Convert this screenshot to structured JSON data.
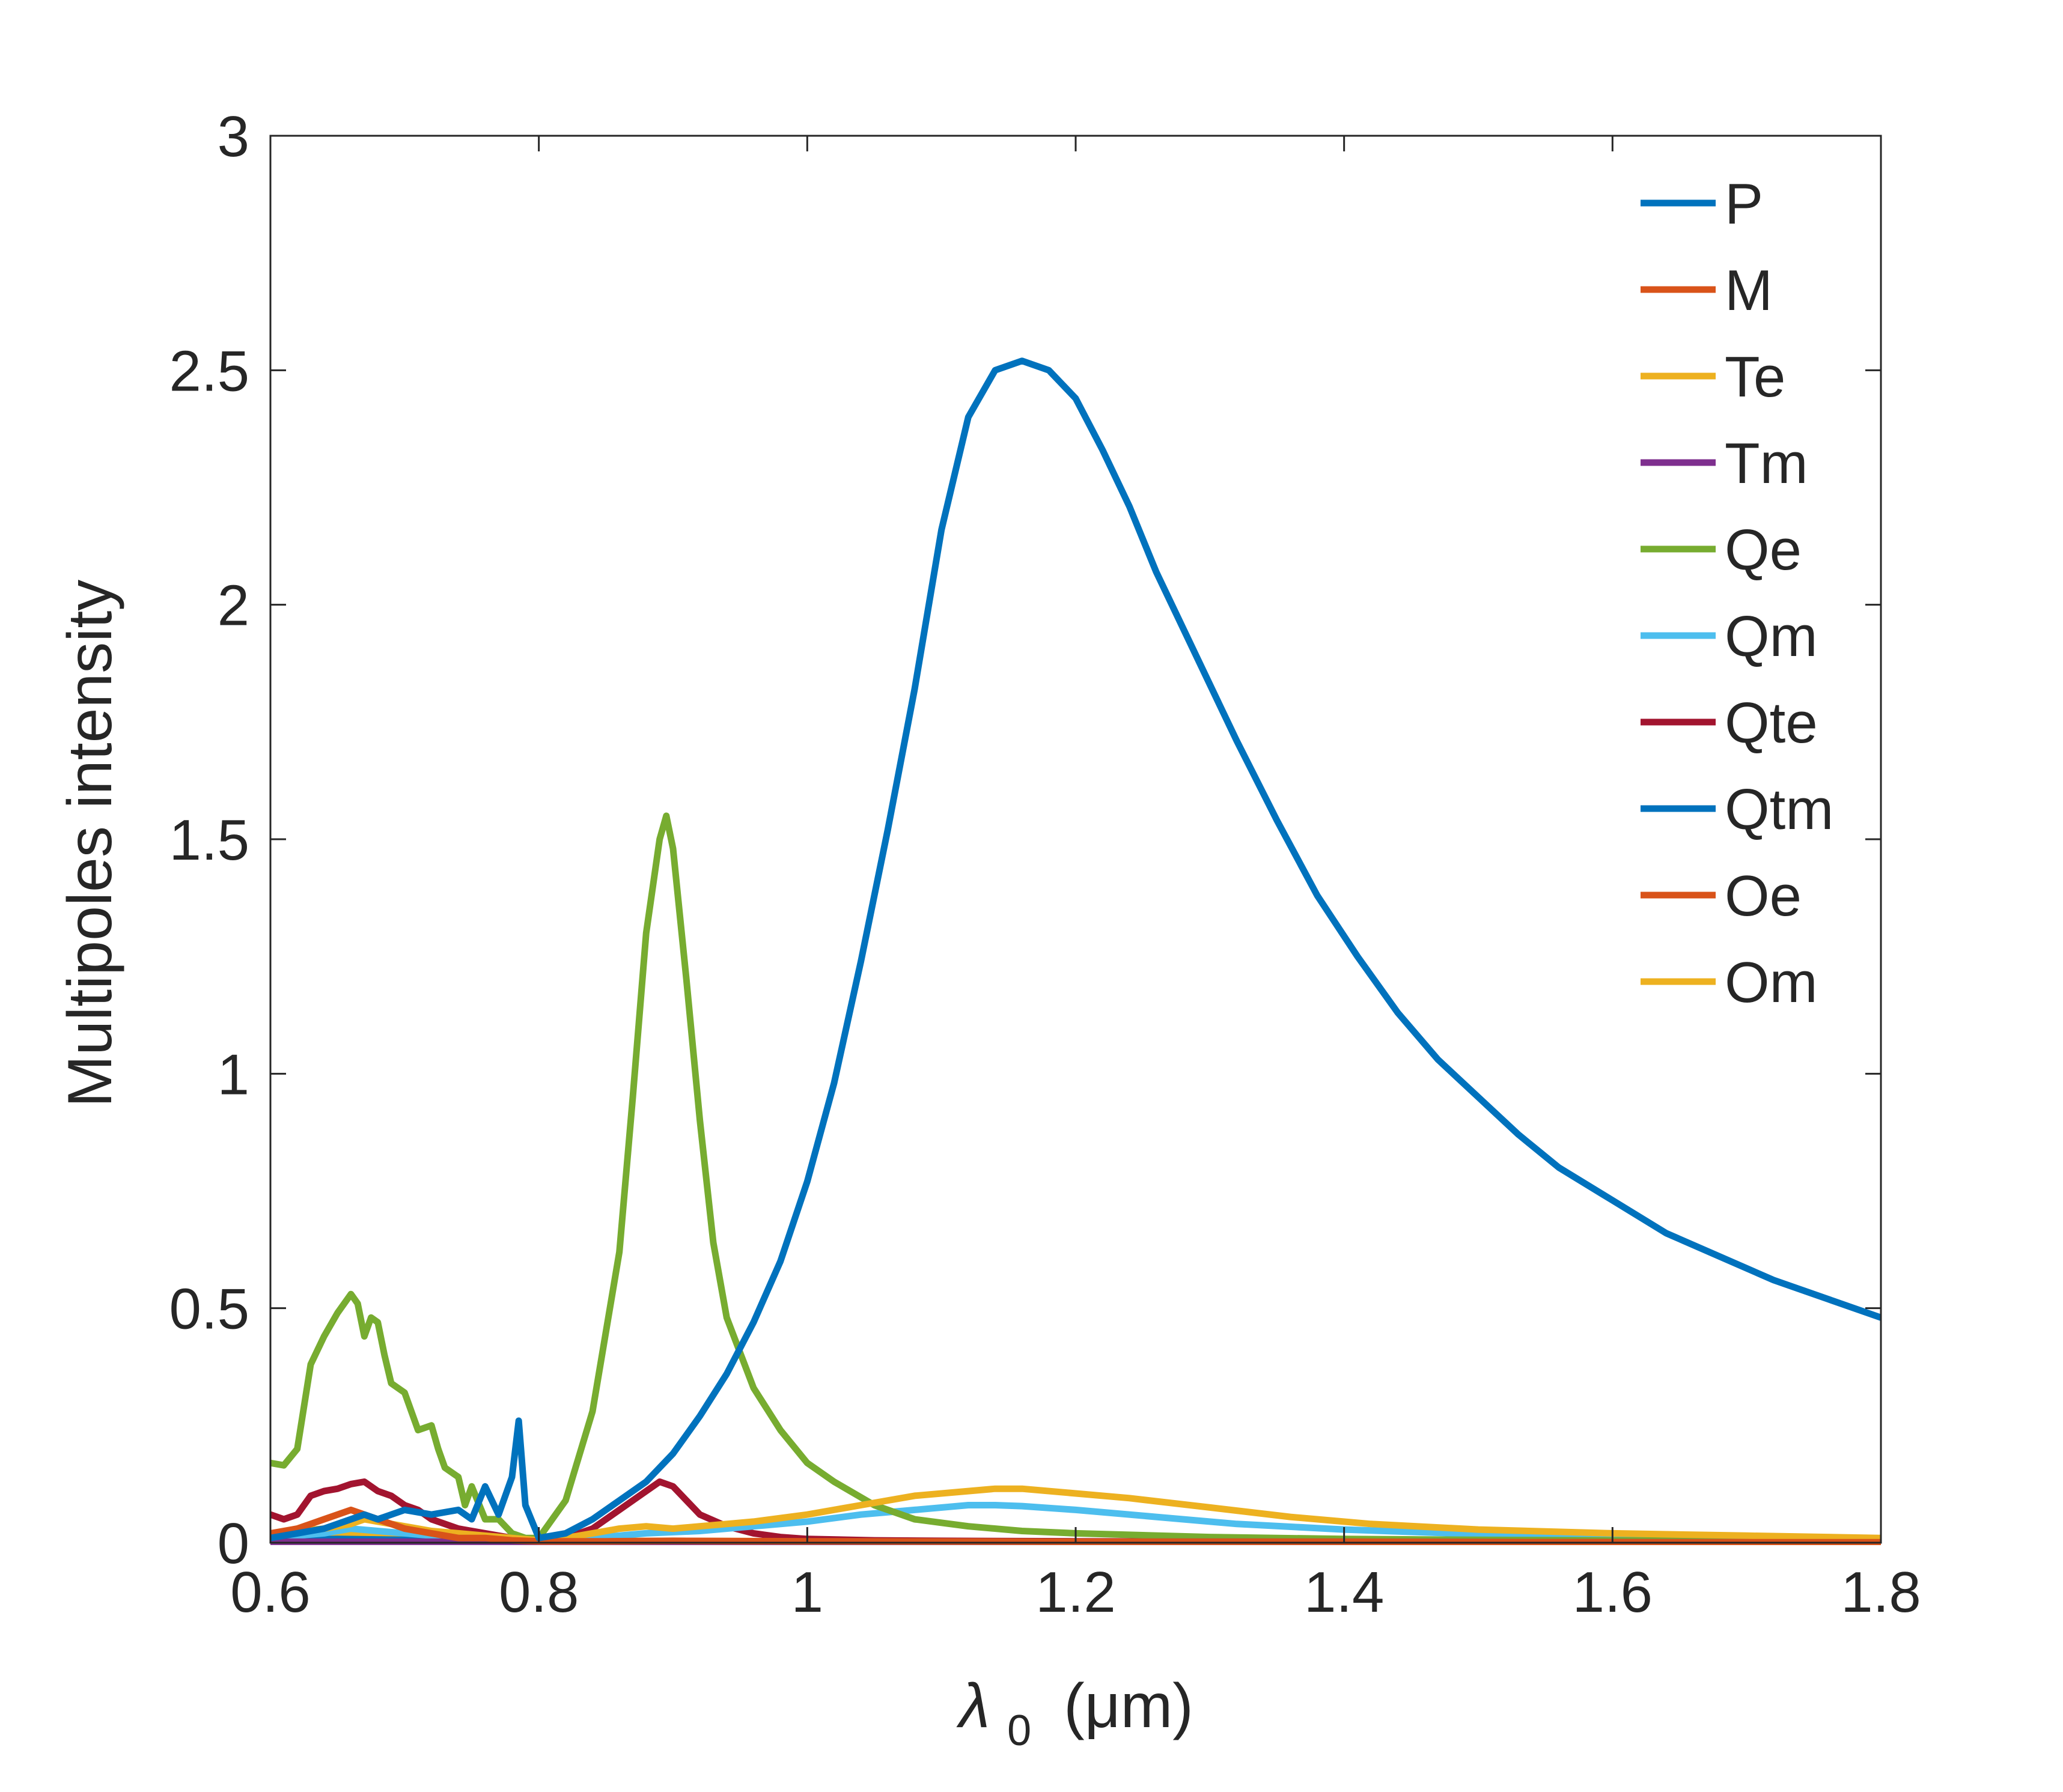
{
  "chart_data": {
    "type": "line",
    "title": "",
    "xlabel": "λ₀ (μm)",
    "xlabel_parts": {
      "symbol": "λ",
      "subscript": "0",
      "unit": "(μm)"
    },
    "ylabel": "Multipoles intensity",
    "xlim": [
      0.6,
      1.8
    ],
    "ylim": [
      0,
      3
    ],
    "xticks": [
      0.6,
      0.8,
      1.0,
      1.2,
      1.4,
      1.6,
      1.8
    ],
    "xtick_labels": [
      "0.6",
      "0.8",
      "1",
      "1.2",
      "1.4",
      "1.6",
      "1.8"
    ],
    "yticks": [
      0,
      0.5,
      1.0,
      1.5,
      2.0,
      2.5,
      3.0
    ],
    "ytick_labels": [
      "0",
      "0.5",
      "1",
      "1.5",
      "2",
      "2.5",
      "3"
    ],
    "grid": false,
    "legend_position": "top-right",
    "series": [
      {
        "name": "P",
        "color": "#0072BD",
        "x": [
          0.6,
          0.62,
          0.64,
          0.66,
          0.67,
          0.68,
          0.7,
          0.72,
          0.74,
          0.75,
          0.76,
          0.77,
          0.78,
          0.785,
          0.79,
          0.8,
          0.82,
          0.84,
          0.86,
          0.88,
          0.9,
          0.92,
          0.94,
          0.96,
          0.98,
          1.0,
          1.02,
          1.04,
          1.06,
          1.08,
          1.1,
          1.12,
          1.14,
          1.16,
          1.18,
          1.2,
          1.22,
          1.24,
          1.26,
          1.28,
          1.3,
          1.32,
          1.35,
          1.38,
          1.41,
          1.44,
          1.47,
          1.5,
          1.53,
          1.56,
          1.6,
          1.64,
          1.68,
          1.72,
          1.76,
          1.8
        ],
        "y": [
          0.01,
          0.02,
          0.03,
          0.05,
          0.06,
          0.05,
          0.07,
          0.06,
          0.07,
          0.05,
          0.12,
          0.06,
          0.14,
          0.26,
          0.08,
          0.01,
          0.02,
          0.05,
          0.09,
          0.13,
          0.19,
          0.27,
          0.36,
          0.47,
          0.6,
          0.77,
          0.98,
          1.24,
          1.52,
          1.82,
          2.16,
          2.4,
          2.5,
          2.52,
          2.5,
          2.44,
          2.33,
          2.21,
          2.07,
          1.95,
          1.83,
          1.71,
          1.54,
          1.38,
          1.25,
          1.13,
          1.03,
          0.95,
          0.87,
          0.8,
          0.73,
          0.66,
          0.61,
          0.56,
          0.52,
          0.48
        ]
      },
      {
        "name": "M",
        "color": "#D95319",
        "x": [
          0.6,
          0.62,
          0.64,
          0.66,
          0.68,
          0.7,
          0.72,
          0.74,
          0.76,
          0.78,
          0.8,
          0.85,
          0.9,
          1.0,
          1.2,
          1.4,
          1.6,
          1.8
        ],
        "y": [
          0.02,
          0.03,
          0.05,
          0.07,
          0.05,
          0.03,
          0.02,
          0.01,
          0.01,
          0.005,
          0.003,
          0.003,
          0.004,
          0.003,
          0.002,
          0.002,
          0.001,
          0.001
        ]
      },
      {
        "name": "Te",
        "color": "#EDB120",
        "x": [
          0.6,
          0.62,
          0.64,
          0.66,
          0.67,
          0.68,
          0.7,
          0.72,
          0.74,
          0.76,
          0.78,
          0.8,
          0.82,
          0.84,
          0.86,
          0.88,
          0.9,
          0.92,
          0.94,
          0.96,
          1.0,
          1.04,
          1.08,
          1.12,
          1.14,
          1.16,
          1.2,
          1.24,
          1.3,
          1.36,
          1.42,
          1.5,
          1.6,
          1.7,
          1.8
        ],
        "y": [
          0.02,
          0.025,
          0.03,
          0.04,
          0.05,
          0.045,
          0.035,
          0.025,
          0.02,
          0.015,
          0.01,
          0.005,
          0.01,
          0.02,
          0.03,
          0.035,
          0.03,
          0.035,
          0.04,
          0.045,
          0.06,
          0.08,
          0.1,
          0.11,
          0.115,
          0.115,
          0.105,
          0.095,
          0.075,
          0.055,
          0.04,
          0.028,
          0.02,
          0.015,
          0.01
        ]
      },
      {
        "name": "Tm",
        "color": "#7E2F8E",
        "x": [
          0.6,
          0.8,
          1.0,
          1.2,
          1.4,
          1.6,
          1.8
        ],
        "y": [
          0.002,
          0.002,
          0.002,
          0.002,
          0.002,
          0.001,
          0.001
        ]
      },
      {
        "name": "Qe",
        "color": "#77AC30",
        "x": [
          0.6,
          0.61,
          0.62,
          0.63,
          0.64,
          0.65,
          0.66,
          0.665,
          0.67,
          0.675,
          0.68,
          0.685,
          0.69,
          0.7,
          0.71,
          0.72,
          0.725,
          0.73,
          0.74,
          0.745,
          0.75,
          0.76,
          0.77,
          0.78,
          0.79,
          0.8,
          0.82,
          0.84,
          0.86,
          0.87,
          0.88,
          0.89,
          0.895,
          0.9,
          0.91,
          0.92,
          0.93,
          0.94,
          0.96,
          0.98,
          1.0,
          1.02,
          1.05,
          1.08,
          1.12,
          1.16,
          1.2,
          1.3,
          1.4,
          1.5,
          1.6,
          1.8
        ],
        "y": [
          0.17,
          0.165,
          0.2,
          0.38,
          0.44,
          0.49,
          0.53,
          0.51,
          0.44,
          0.48,
          0.47,
          0.4,
          0.34,
          0.32,
          0.24,
          0.25,
          0.2,
          0.16,
          0.14,
          0.08,
          0.12,
          0.05,
          0.05,
          0.02,
          0.01,
          0.01,
          0.09,
          0.28,
          0.62,
          0.95,
          1.3,
          1.5,
          1.55,
          1.48,
          1.2,
          0.9,
          0.64,
          0.48,
          0.33,
          0.24,
          0.17,
          0.13,
          0.08,
          0.05,
          0.035,
          0.025,
          0.02,
          0.012,
          0.008,
          0.006,
          0.005,
          0.003
        ]
      },
      {
        "name": "Qm",
        "color": "#4DBEEE",
        "x": [
          0.6,
          0.64,
          0.66,
          0.68,
          0.7,
          0.72,
          0.76,
          0.8,
          0.84,
          0.88,
          0.92,
          0.96,
          1.0,
          1.04,
          1.08,
          1.12,
          1.14,
          1.16,
          1.2,
          1.26,
          1.32,
          1.4,
          1.5,
          1.6,
          1.7,
          1.8
        ],
        "y": [
          0.01,
          0.02,
          0.03,
          0.025,
          0.02,
          0.015,
          0.01,
          0.005,
          0.01,
          0.02,
          0.025,
          0.035,
          0.045,
          0.06,
          0.07,
          0.08,
          0.08,
          0.078,
          0.07,
          0.055,
          0.04,
          0.028,
          0.018,
          0.013,
          0.01,
          0.008
        ]
      },
      {
        "name": "Qte",
        "color": "#A2142F",
        "x": [
          0.6,
          0.61,
          0.62,
          0.63,
          0.64,
          0.65,
          0.66,
          0.67,
          0.68,
          0.69,
          0.7,
          0.71,
          0.72,
          0.74,
          0.76,
          0.78,
          0.8,
          0.82,
          0.84,
          0.86,
          0.88,
          0.89,
          0.9,
          0.91,
          0.92,
          0.94,
          0.96,
          0.98,
          1.0,
          1.05,
          1.1,
          1.2,
          1.4,
          1.8
        ],
        "y": [
          0.06,
          0.05,
          0.06,
          0.1,
          0.11,
          0.115,
          0.125,
          0.13,
          0.11,
          0.1,
          0.08,
          0.07,
          0.05,
          0.03,
          0.02,
          0.01,
          0.005,
          0.01,
          0.03,
          0.07,
          0.11,
          0.13,
          0.12,
          0.09,
          0.06,
          0.035,
          0.02,
          0.012,
          0.008,
          0.005,
          0.004,
          0.003,
          0.002,
          0.001
        ]
      },
      {
        "name": "Qtm",
        "color": "#0072BD",
        "x": [
          0.6,
          0.65,
          0.7,
          0.75,
          0.8,
          0.9,
          1.0,
          1.2,
          1.4,
          1.6,
          1.8
        ],
        "y": [
          0.005,
          0.008,
          0.006,
          0.004,
          0.003,
          0.003,
          0.002,
          0.002,
          0.001,
          0.001,
          0.001
        ]
      },
      {
        "name": "Oe",
        "color": "#D95319",
        "x": [
          0.6,
          0.65,
          0.7,
          0.75,
          0.8,
          0.9,
          1.0,
          1.2,
          1.4,
          1.6,
          1.8
        ],
        "y": [
          0.004,
          0.006,
          0.005,
          0.003,
          0.002,
          0.002,
          0.001,
          0.001,
          0.001,
          0.001,
          0.001
        ]
      },
      {
        "name": "Om",
        "color": "#EDB120",
        "x": [
          0.6,
          0.64,
          0.66,
          0.68,
          0.7,
          0.74,
          0.78,
          0.8,
          0.9,
          1.0,
          1.2,
          1.4,
          1.6,
          1.8
        ],
        "y": [
          0.01,
          0.015,
          0.02,
          0.018,
          0.012,
          0.008,
          0.005,
          0.003,
          0.004,
          0.003,
          0.002,
          0.002,
          0.001,
          0.001
        ]
      }
    ]
  }
}
